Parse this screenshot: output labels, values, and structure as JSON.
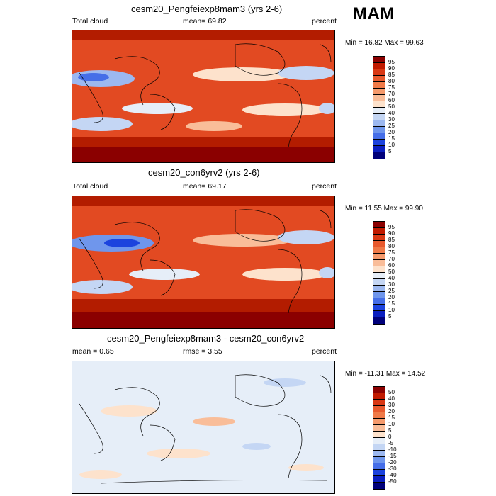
{
  "season": "MAM",
  "panels": [
    {
      "title": "cesm20_Pengfeiexp8mam3 (yrs 2-6)",
      "left_label": "Total cloud",
      "center_label": "mean=  69.82",
      "right_label": "percent",
      "minmax": "Min =  16.82 Max =  99.63",
      "levels": [
        "95",
        "90",
        "85",
        "80",
        "75",
        "70",
        "60",
        "50",
        "40",
        "30",
        "25",
        "20",
        "15",
        "10",
        "5"
      ],
      "colors": [
        "#8b0000",
        "#c11a00",
        "#d93814",
        "#e85a2e",
        "#f07a48",
        "#f59a6c",
        "#f9bd99",
        "#fde2cc",
        "#e6eef8",
        "#c4d6f4",
        "#9cb8f0",
        "#6f96ec",
        "#456ee8",
        "#1c43de",
        "#0a1ec0",
        "#00007a"
      ]
    },
    {
      "title": "cesm20_con6yrv2 (yrs 2-6)",
      "left_label": "Total cloud",
      "center_label": "mean=  69.17",
      "right_label": "percent",
      "minmax": "Min =  11.55 Max =  99.90",
      "levels": [
        "95",
        "90",
        "85",
        "80",
        "75",
        "70",
        "60",
        "50",
        "40",
        "30",
        "25",
        "20",
        "15",
        "10",
        "5"
      ],
      "colors": [
        "#8b0000",
        "#c11a00",
        "#d93814",
        "#e85a2e",
        "#f07a48",
        "#f59a6c",
        "#f9bd99",
        "#fde2cc",
        "#e6eef8",
        "#c4d6f4",
        "#9cb8f0",
        "#6f96ec",
        "#456ee8",
        "#1c43de",
        "#0a1ec0",
        "#00007a"
      ]
    },
    {
      "title": "cesm20_Pengfeiexp8mam3 - cesm20_con6yrv2",
      "left_label": "mean =   0.65",
      "center_label": "rmse =   3.55",
      "right_label": "percent",
      "minmax": "Min = -11.31 Max =  14.52",
      "levels": [
        "50",
        "40",
        "30",
        "20",
        "15",
        "10",
        "5",
        "0",
        "-5",
        "-10",
        "-15",
        "-20",
        "-30",
        "-40",
        "-50"
      ],
      "colors": [
        "#8b0000",
        "#c11a00",
        "#d93814",
        "#e85a2e",
        "#f07a48",
        "#f59a6c",
        "#f9bd99",
        "#fde2cc",
        "#e6eef8",
        "#c4d6f4",
        "#9cb8f0",
        "#6f96ec",
        "#456ee8",
        "#1c43de",
        "#0a1ec0",
        "#00007a"
      ]
    }
  ]
}
